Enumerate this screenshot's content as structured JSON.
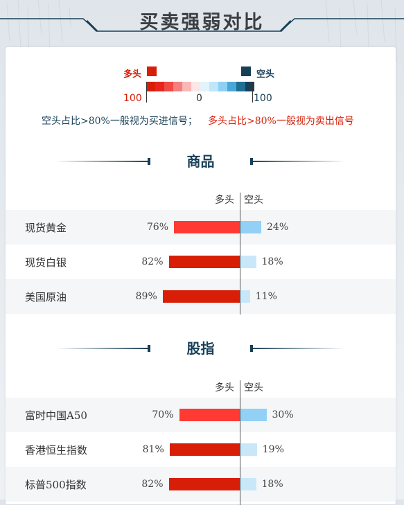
{
  "title": "买卖强弱对比",
  "legend": {
    "long_label": "多头",
    "short_label": "空头",
    "left_num": "100",
    "center_num": "0",
    "right_num": "100",
    "colors": [
      "#d81e06",
      "#e8251c",
      "#f04a44",
      "#f47f7e",
      "#f9b8b8",
      "#fde6e6",
      "#e3f3fb",
      "#bfe6f9",
      "#8dd0f3",
      "#4aa8d7",
      "#1f6f93",
      "#173f57"
    ]
  },
  "notes": {
    "buy_signal": "空头占比>80%一般视为买进信号；",
    "sell_signal": "多头占比>80%一般视为卖出信号"
  },
  "sections": [
    {
      "title": "商品",
      "col_long": "多头",
      "col_short": "空头"
    },
    {
      "title": "股指",
      "col_long": "多头",
      "col_short": "空头"
    }
  ],
  "colors": {
    "long_strong": "#d81e06",
    "long_mid": "#ff3a33",
    "short_mid": "#93d0f5",
    "short_light": "#c8e8fa",
    "title_navy": "#173f57"
  },
  "chart_data": [
    {
      "type": "bar",
      "title": "商品",
      "categories": [
        "现货黄金",
        "现货白银",
        "美国原油"
      ],
      "series": [
        {
          "name": "多头",
          "values": [
            76,
            82,
            89
          ],
          "labels": [
            "76%",
            "82%",
            "89%"
          ]
        },
        {
          "name": "空头",
          "values": [
            24,
            18,
            11
          ],
          "labels": [
            "24%",
            "18%",
            "11%"
          ]
        }
      ]
    },
    {
      "type": "bar",
      "title": "股指",
      "categories": [
        "富时中国A50",
        "香港恒生指数",
        "标普500指数"
      ],
      "series": [
        {
          "name": "多头",
          "values": [
            70,
            81,
            82
          ],
          "labels": [
            "70%",
            "81%",
            "82%"
          ]
        },
        {
          "name": "空头",
          "values": [
            30,
            19,
            18
          ],
          "labels": [
            "30%",
            "19%",
            "18%"
          ]
        }
      ]
    }
  ]
}
